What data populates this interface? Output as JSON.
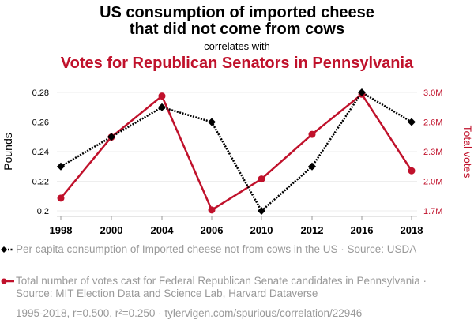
{
  "header": {
    "title_line1": "US consumption of imported cheese",
    "title_line2": "that did not come from cows",
    "subtitle": "correlates with",
    "title2": "Votes for Republican Senators in Pennsylvania"
  },
  "colors": {
    "series1": "#000000",
    "series2": "#c0112b",
    "grid": "#eeeeee",
    "legend_text": "#999999"
  },
  "chart_data": {
    "type": "line",
    "title": "US consumption of imported cheese that did not come from cows correlates with Votes for Republican Senators in Pennsylvania",
    "x": [
      "1998",
      "2000",
      "2004",
      "2006",
      "2010",
      "2012",
      "2016",
      "2018"
    ],
    "xlabel": "",
    "ylabel": "Pounds",
    "ylabel_right": "Total votes",
    "ylim": [
      0.2,
      0.28
    ],
    "ylim_right": [
      1.7,
      3.0
    ],
    "yticks": [
      "0.28",
      "0.26",
      "0.24",
      "0.22",
      "0.2"
    ],
    "yticks_right": [
      "3.0M",
      "2.6M",
      "2.3M",
      "2.0M",
      "1.7M"
    ],
    "grid": true,
    "series": [
      {
        "name": "Per capita consumption of Imported cheese not from cows in the US",
        "axis": "left",
        "style": "dotted-diamond",
        "values": [
          0.23,
          0.25,
          0.27,
          0.26,
          0.2,
          0.23,
          0.28,
          0.26
        ]
      },
      {
        "name": "Total number of votes cast for Federal Republican Senate candidates in Pennsylvania",
        "axis": "right",
        "style": "solid-circle",
        "values": [
          1.84,
          2.51,
          2.96,
          1.71,
          2.05,
          2.54,
          2.98,
          2.14
        ]
      }
    ],
    "legend_position": "bottom"
  },
  "legend": {
    "item1": "Per capita consumption of Imported cheese not from cows in the US · Source: USDA",
    "item2": "Total number of votes cast for Federal Republican Senate candidates in Pennsylvania · Source: MIT Election Data and Science Lab, Harvard Dataverse"
  },
  "footer": "1995-2018, r=0.500, r²=0.250 · tylervigen.com/spurious/correlation/22946"
}
